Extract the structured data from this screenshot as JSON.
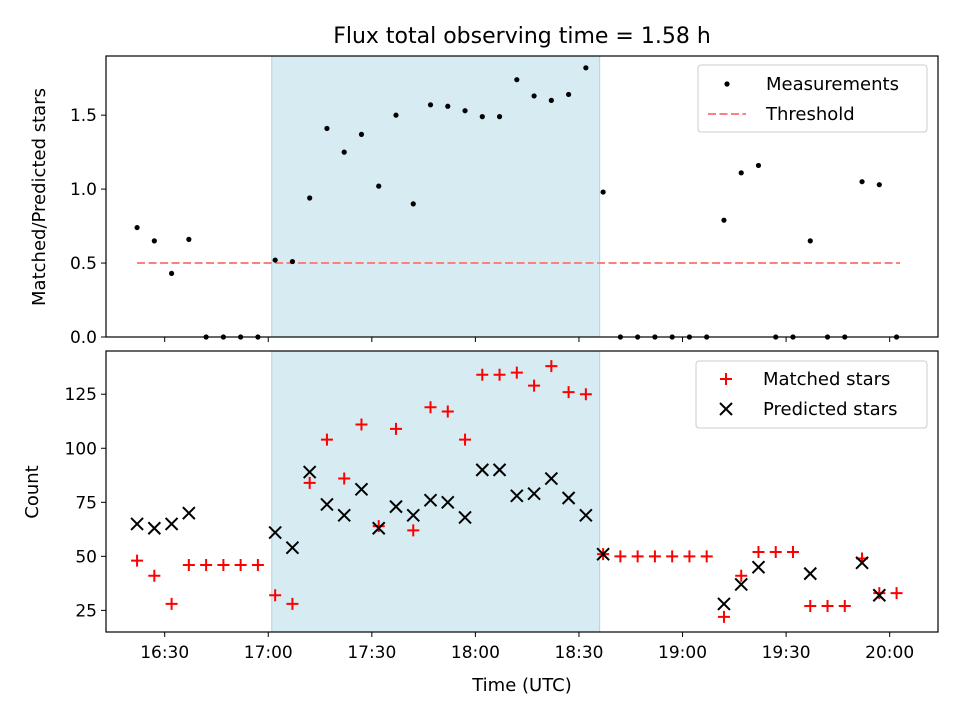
{
  "figure": {
    "title": "Flux total observing time = 1.58 h",
    "xlabel": "Time (UTC)"
  },
  "chart_data": [
    {
      "type": "scatter",
      "ylabel": "Matched/Predicted stars",
      "xlim": [
        "16:13",
        "20:14"
      ],
      "ylim": [
        0,
        1.9
      ],
      "yticks": [
        0.0,
        0.5,
        1.0,
        1.5
      ],
      "ytick_labels": [
        "0.0",
        "0.5",
        "1.0",
        "1.5"
      ],
      "shaded_region": {
        "start": "17:01",
        "end": "18:36",
        "color": "#add8e6"
      },
      "legend": {
        "placement": "top-right",
        "entries": [
          "Measurements",
          "Threshold"
        ]
      },
      "threshold": {
        "name": "Threshold",
        "value": 0.5,
        "x_start": "16:22",
        "x_end": "20:03",
        "color": "#ff7f7f",
        "style": "dashed"
      },
      "series": [
        {
          "name": "Measurements",
          "marker": "dot",
          "color": "#000000",
          "x": [
            "16:22",
            "16:27",
            "16:32",
            "16:37",
            "16:42",
            "16:47",
            "16:52",
            "16:57",
            "17:02",
            "17:07",
            "17:12",
            "17:17",
            "17:22",
            "17:27",
            "17:32",
            "17:37",
            "17:42",
            "17:47",
            "17:52",
            "17:57",
            "18:02",
            "18:07",
            "18:12",
            "18:17",
            "18:22",
            "18:27",
            "18:32",
            "18:37",
            "18:42",
            "18:47",
            "18:52",
            "18:57",
            "19:02",
            "19:07",
            "19:12",
            "19:17",
            "19:22",
            "19:27",
            "19:32",
            "19:37",
            "19:42",
            "19:47",
            "19:52",
            "19:57",
            "20:02"
          ],
          "y": [
            0.74,
            0.65,
            0.43,
            0.66,
            0.0,
            0.0,
            0.0,
            0.0,
            0.52,
            0.51,
            0.94,
            1.41,
            1.25,
            1.37,
            1.02,
            1.5,
            0.9,
            1.57,
            1.56,
            1.53,
            1.49,
            1.49,
            1.74,
            1.63,
            1.6,
            1.64,
            1.82,
            0.98,
            0.0,
            0.0,
            0.0,
            0.0,
            0.0,
            0.0,
            0.79,
            1.11,
            1.16,
            0.0,
            0.0,
            0.65,
            0.0,
            0.0,
            1.05,
            1.03,
            0.0
          ]
        }
      ]
    },
    {
      "type": "scatter",
      "ylabel": "Count",
      "xlim": [
        "16:13",
        "20:14"
      ],
      "ylim": [
        15,
        145
      ],
      "yticks": [
        25,
        50,
        75,
        100,
        125
      ],
      "ytick_labels": [
        "25",
        "50",
        "75",
        "100",
        "125"
      ],
      "xticks": [
        "16:30",
        "17:00",
        "17:30",
        "18:00",
        "18:30",
        "19:00",
        "19:30",
        "20:00"
      ],
      "xtick_labels": [
        "16:30",
        "17:00",
        "17:30",
        "18:00",
        "18:30",
        "19:00",
        "19:30",
        "20:00"
      ],
      "shaded_region": {
        "start": "17:01",
        "end": "18:36",
        "color": "#add8e6"
      },
      "legend": {
        "placement": "top-right",
        "entries": [
          "Matched stars",
          "Predicted stars"
        ]
      },
      "series": [
        {
          "name": "Matched stars",
          "marker": "plus",
          "color": "#ff0000",
          "x": [
            "16:22",
            "16:27",
            "16:32",
            "16:37",
            "16:42",
            "16:47",
            "16:52",
            "16:57",
            "17:02",
            "17:07",
            "17:12",
            "17:17",
            "17:22",
            "17:27",
            "17:32",
            "17:37",
            "17:42",
            "17:47",
            "17:52",
            "17:57",
            "18:02",
            "18:07",
            "18:12",
            "18:17",
            "18:22",
            "18:27",
            "18:32",
            "18:37",
            "18:42",
            "18:47",
            "18:52",
            "18:57",
            "19:02",
            "19:07",
            "19:12",
            "19:17",
            "19:22",
            "19:27",
            "19:32",
            "19:37",
            "19:42",
            "19:47",
            "19:52",
            "19:57",
            "20:02"
          ],
          "y": [
            48,
            41,
            28,
            46,
            46,
            46,
            46,
            46,
            32,
            28,
            84,
            104,
            86,
            111,
            64,
            109,
            62,
            119,
            117,
            104,
            134,
            134,
            135,
            129,
            138,
            126,
            125,
            51,
            50,
            50,
            50,
            50,
            50,
            50,
            22,
            41,
            52,
            52,
            52,
            27,
            27,
            27,
            49,
            33,
            33
          ]
        },
        {
          "name": "Predicted stars",
          "marker": "x",
          "color": "#000000",
          "x": [
            "16:22",
            "16:27",
            "16:32",
            "16:37",
            "17:02",
            "17:07",
            "17:12",
            "17:17",
            "17:22",
            "17:27",
            "17:32",
            "17:37",
            "17:42",
            "17:47",
            "17:52",
            "17:57",
            "18:02",
            "18:07",
            "18:12",
            "18:17",
            "18:22",
            "18:27",
            "18:32",
            "18:37",
            "19:12",
            "19:17",
            "19:22",
            "19:37",
            "19:52",
            "19:57"
          ],
          "y": [
            65,
            63,
            65,
            70,
            61,
            54,
            89,
            74,
            69,
            81,
            63,
            73,
            69,
            76,
            75,
            68,
            90,
            90,
            78,
            79,
            86,
            77,
            69,
            51,
            28,
            37,
            45,
            42,
            47,
            32
          ]
        }
      ]
    }
  ]
}
